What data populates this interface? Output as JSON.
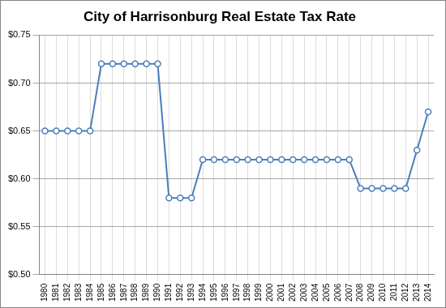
{
  "chart_data": {
    "type": "line",
    "title": "City of Harrisonburg Real Estate Tax Rate",
    "categories": [
      "1980",
      "1981",
      "1982",
      "1983",
      "1984",
      "1985",
      "1986",
      "1987",
      "1988",
      "1989",
      "1990",
      "1991",
      "1992",
      "1993",
      "1994",
      "1995",
      "1996",
      "1997",
      "1998",
      "1999",
      "2000",
      "2001",
      "2002",
      "2003",
      "2004",
      "2005",
      "2006",
      "2007",
      "2008",
      "2009",
      "2010",
      "2011",
      "2012",
      "2013",
      "2014"
    ],
    "values": [
      0.65,
      0.65,
      0.65,
      0.65,
      0.65,
      0.72,
      0.72,
      0.72,
      0.72,
      0.72,
      0.72,
      0.58,
      0.58,
      0.58,
      0.62,
      0.62,
      0.62,
      0.62,
      0.62,
      0.62,
      0.62,
      0.62,
      0.62,
      0.62,
      0.62,
      0.62,
      0.62,
      0.62,
      0.59,
      0.59,
      0.59,
      0.59,
      0.59,
      0.63,
      0.67
    ],
    "color": "#4a7ebb",
    "marker": "circle",
    "ylim": [
      0.5,
      0.75
    ],
    "yticks": [
      {
        "value": 0.5,
        "label": "$0.50"
      },
      {
        "value": 0.55,
        "label": "$0.55"
      },
      {
        "value": 0.6,
        "label": "$0.60"
      },
      {
        "value": 0.65,
        "label": "$0.65"
      },
      {
        "value": 0.7,
        "label": "$0.70"
      },
      {
        "value": 0.75,
        "label": "$0.75"
      }
    ],
    "grid": true
  }
}
